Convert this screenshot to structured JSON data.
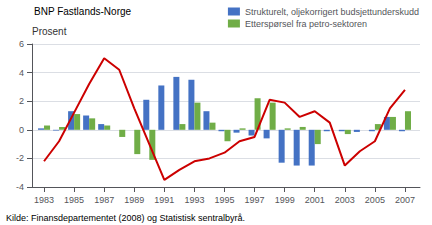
{
  "chart_data": {
    "type": "bar",
    "ylabel": "Prosent",
    "annotations": [
      "BNP Fastlands-Norge",
      "Kilde: Finansdepartementet (2008) og Statistisk sentralbyrå."
    ],
    "x": [
      1983,
      1984,
      1985,
      1986,
      1987,
      1988,
      1989,
      1990,
      1991,
      1992,
      1993,
      1994,
      1995,
      1996,
      1997,
      1998,
      1999,
      2000,
      2001,
      2002,
      2003,
      2004,
      2005,
      2006,
      2007
    ],
    "series": [
      {
        "name": "Strukturelt, oljekorrigert budsjettunderskudd",
        "type": "bar",
        "color": "#4472C4",
        "values": [
          0.1,
          -0.05,
          1.3,
          1.0,
          0.4,
          0.0,
          0.0,
          2.1,
          3.1,
          3.7,
          3.5,
          1.3,
          -0.1,
          -0.2,
          -0.4,
          -0.6,
          -2.3,
          -2.5,
          -2.5,
          -0.1,
          -0.1,
          -0.15,
          -0.1,
          0.9,
          -0.1
        ]
      },
      {
        "name": "Etterspørsel fra petro-sektoren",
        "type": "bar",
        "color": "#70AD47",
        "values": [
          0.3,
          0.2,
          1.1,
          0.8,
          0.3,
          -0.5,
          -1.7,
          -2.1,
          0.0,
          0.4,
          1.9,
          0.5,
          -0.8,
          0.1,
          2.2,
          1.9,
          0.1,
          0.2,
          -1.0,
          0.0,
          -0.3,
          0.0,
          0.4,
          0.9,
          1.3
        ]
      },
      {
        "type": "line",
        "color": "#CC0000",
        "values": [
          -2.2,
          -0.8,
          1.2,
          3.2,
          5.0,
          4.2,
          1.5,
          -1.0,
          -3.5,
          -2.8,
          -2.2,
          -2.0,
          -1.6,
          -0.8,
          -0.5,
          2.1,
          1.9,
          0.9,
          1.3,
          0.5,
          -2.5,
          -1.5,
          -0.8,
          1.5,
          2.8
        ]
      }
    ],
    "xlim": [
      1982.2,
      2008.0
    ],
    "xticks": [
      1983,
      1985,
      1987,
      1989,
      1991,
      1993,
      1995,
      1997,
      1999,
      2001,
      2003,
      2005,
      2007
    ],
    "ylim": [
      -4,
      6
    ],
    "yticks": [
      -4,
      -2,
      0,
      2,
      4,
      6
    ],
    "grid": true,
    "legend": "upper right"
  }
}
